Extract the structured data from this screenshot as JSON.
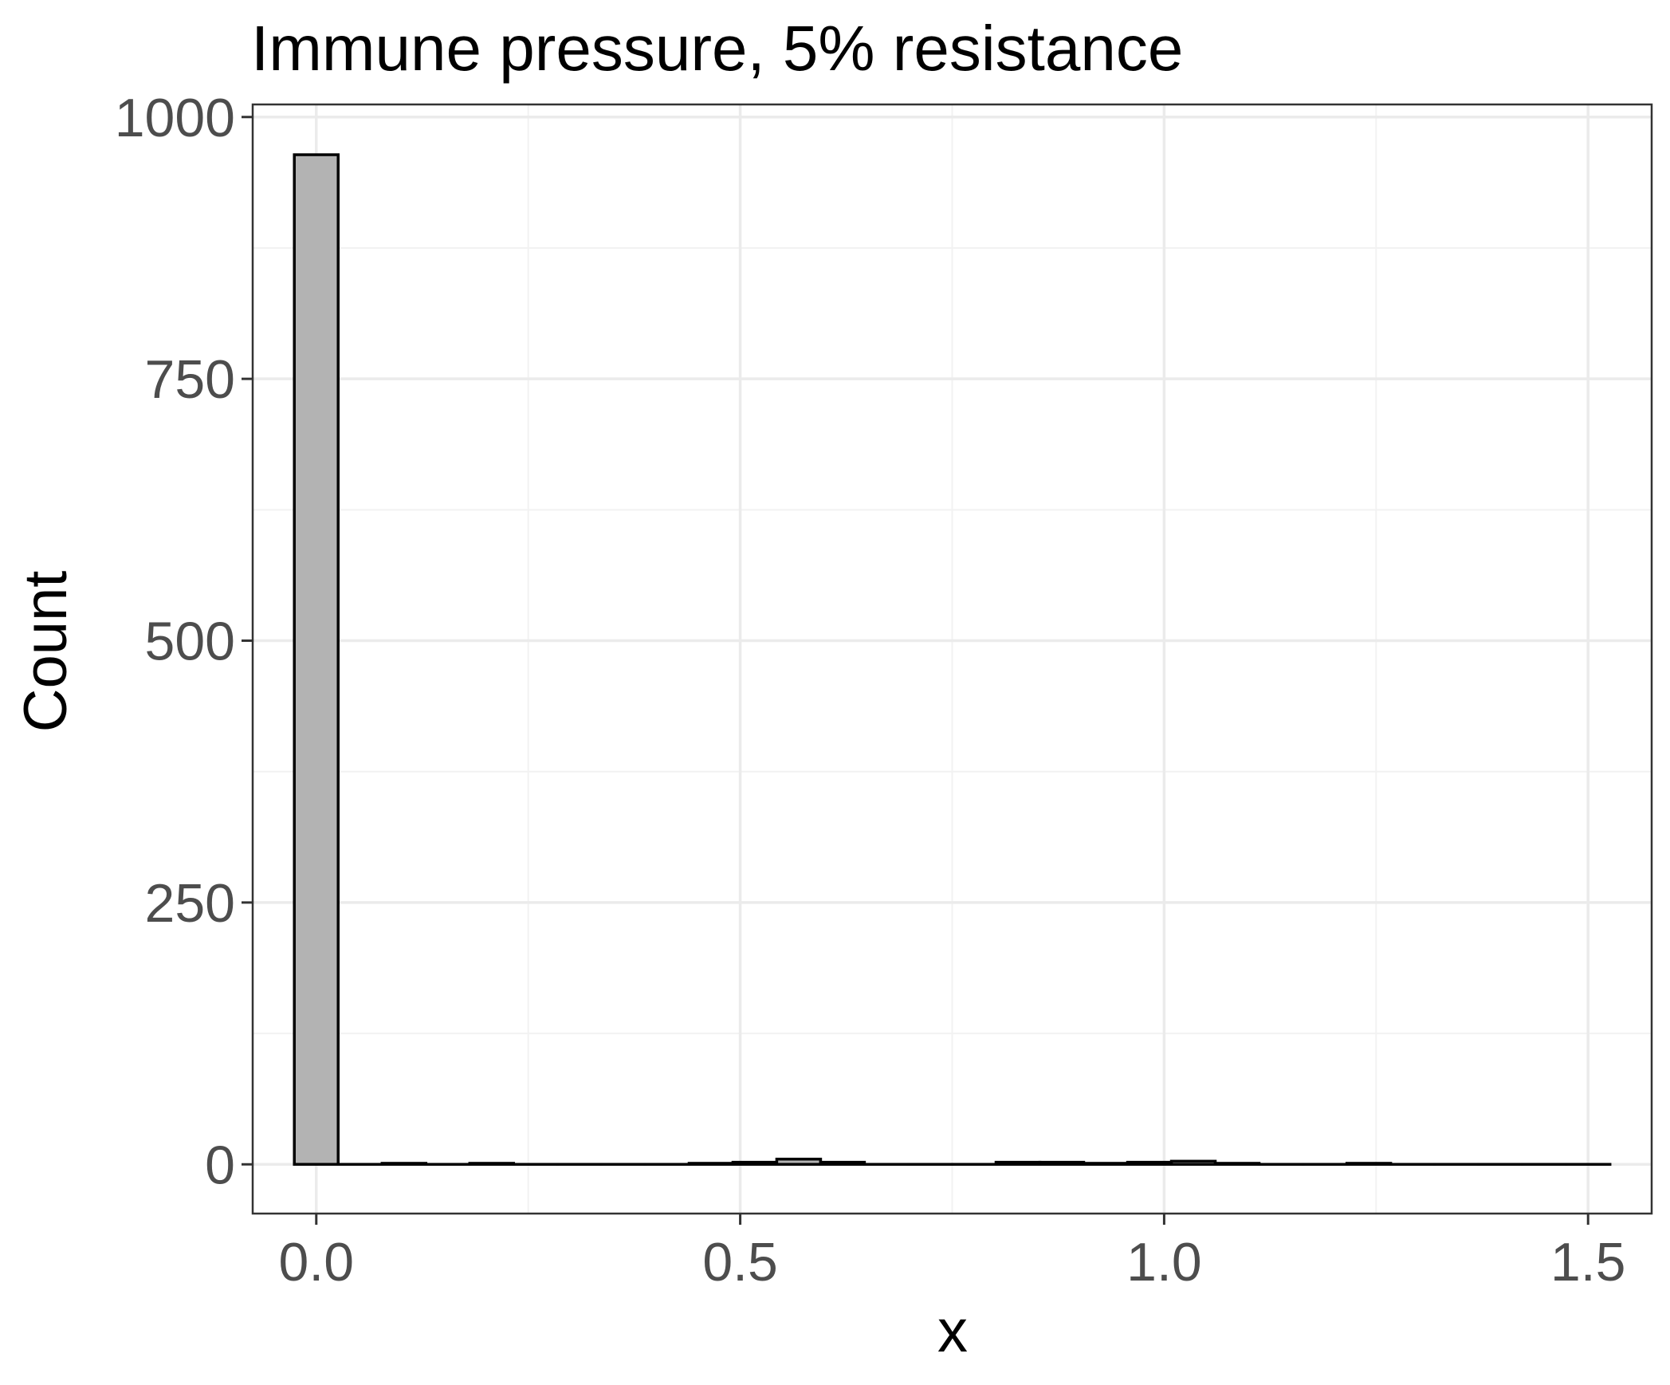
{
  "chart_data": {
    "type": "bar",
    "subtype": "histogram",
    "title": "Immune pressure, 5% resistance",
    "xlabel": "x",
    "ylabel": "Count",
    "xlim": [
      -0.075,
      1.575
    ],
    "ylim": [
      -47,
      1012
    ],
    "x_ticks": [
      0.0,
      0.5,
      1.0,
      1.5
    ],
    "x_tick_labels": [
      "0.0",
      "0.5",
      "1.0",
      "1.5"
    ],
    "y_ticks": [
      0,
      250,
      500,
      750,
      1000
    ],
    "y_tick_labels": [
      "0",
      "250",
      "500",
      "750",
      "1000"
    ],
    "grid": true,
    "bin_width": 0.05172,
    "bin_starts": [
      -0.0259,
      0.0259,
      0.0776,
      0.1293,
      0.181,
      0.2328,
      0.2845,
      0.3362,
      0.3879,
      0.4397,
      0.4914,
      0.5431,
      0.5948,
      0.6466,
      0.6983,
      0.75,
      0.8017,
      0.8534,
      0.9052,
      0.9569,
      1.0086,
      1.0603,
      1.1121,
      1.1638,
      1.2155,
      1.2672,
      1.319,
      1.3707,
      1.4224,
      1.4741
    ],
    "values": [
      964,
      0,
      1,
      0,
      1,
      0,
      0,
      0,
      0,
      1,
      2,
      5,
      2,
      0,
      0,
      0,
      2,
      2,
      1,
      2,
      3,
      1,
      0,
      0,
      1,
      0,
      0,
      0,
      0,
      0
    ],
    "colors": {
      "bar_fill": "#b3b3b3",
      "bar_stroke": "#000000",
      "grid_major": "#ebebeb",
      "grid_minor": "#f2f2f2",
      "panel_border": "#333333",
      "tick_label": "#4d4d4d"
    }
  }
}
